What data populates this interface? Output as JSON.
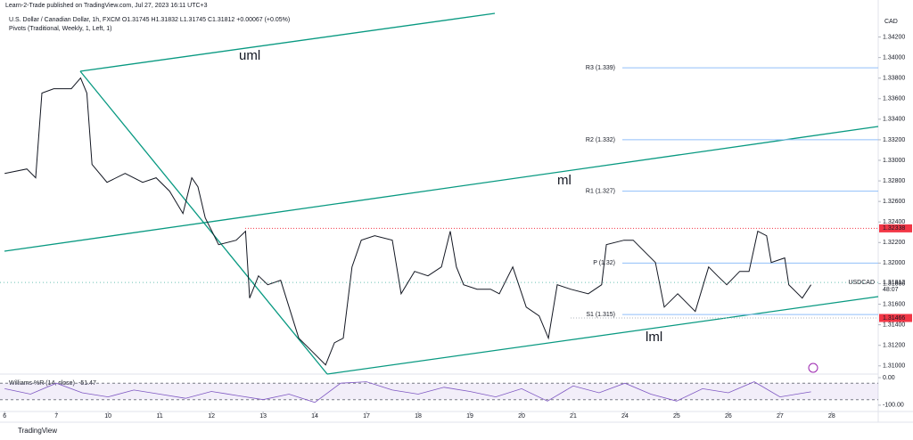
{
  "header": "Learn-2-Trade published on TradingView.com, Jul 27, 2023 16:11 UTC+3",
  "footer": "TradingView",
  "chart_data": [
    {
      "type": "line",
      "title": "U.S. Dollar / Canadian Dollar, 1h, FXCM  O1.31745  H1.31832  L1.31745  C1.31812  +0.00067 (+0.05%)",
      "subtitle": "Pivots (Traditional, Weekly, 1, Left, 1)",
      "currency": "CAD",
      "annotations": [
        "uml",
        "ml",
        "lml"
      ],
      "xlim": [
        -1.09,
        15.9
      ],
      "xticks": [
        {
          "value": -1,
          "label": "6"
        },
        {
          "value": 0,
          "label": "7"
        },
        {
          "value": 1,
          "label": "10"
        },
        {
          "value": 2,
          "label": "11"
        },
        {
          "value": 3,
          "label": "12"
        },
        {
          "value": 4,
          "label": "13"
        },
        {
          "value": 5,
          "label": "14"
        },
        {
          "value": 6,
          "label": "17"
        },
        {
          "value": 7,
          "label": "18"
        },
        {
          "value": 8,
          "label": "19"
        },
        {
          "value": 9,
          "label": "20"
        },
        {
          "value": 10,
          "label": "21"
        },
        {
          "value": 11,
          "label": "24"
        },
        {
          "value": 12,
          "label": "25"
        },
        {
          "value": 13,
          "label": "26"
        },
        {
          "value": 14,
          "label": "27"
        },
        {
          "value": 15,
          "label": "28"
        }
      ],
      "ylim": [
        1.3092,
        1.3456
      ],
      "yticks": [
        {
          "value": 1.31,
          "label": "1.31000"
        },
        {
          "value": 1.312,
          "label": "1.31200"
        },
        {
          "value": 1.314,
          "label": "1.31400"
        },
        {
          "value": 1.316,
          "label": "1.31600"
        },
        {
          "value": 1.318,
          "label": "1.31800"
        },
        {
          "value": 1.32,
          "label": "1.32000"
        },
        {
          "value": 1.322,
          "label": "1.32200"
        },
        {
          "value": 1.324,
          "label": "1.32400"
        },
        {
          "value": 1.326,
          "label": "1.32600"
        },
        {
          "value": 1.328,
          "label": "1.32800"
        },
        {
          "value": 1.33,
          "label": "1.33000"
        },
        {
          "value": 1.332,
          "label": "1.33200"
        },
        {
          "value": 1.334,
          "label": "1.33400"
        },
        {
          "value": 1.336,
          "label": "1.33600"
        },
        {
          "value": 1.338,
          "label": "1.33800"
        },
        {
          "value": 1.34,
          "label": "1.34000"
        },
        {
          "value": 1.342,
          "label": "1.34200"
        }
      ],
      "grid": false,
      "series": [
        {
          "name": "USDCAD",
          "color": "#131722",
          "x": [
            -1.0,
            -0.57,
            -0.4,
            -0.28,
            -0.05,
            0.29,
            0.47,
            0.59,
            0.69,
            0.98,
            1.33,
            1.67,
            1.93,
            2.19,
            2.45,
            2.62,
            2.74,
            2.88,
            3.14,
            3.48,
            3.66,
            3.74,
            3.91,
            4.09,
            4.34,
            4.69,
            4.95,
            5.21,
            5.38,
            5.55,
            5.72,
            5.9,
            6.16,
            6.5,
            6.67,
            6.93,
            7.19,
            7.45,
            7.62,
            7.74,
            7.88,
            8.14,
            8.4,
            8.57,
            8.83,
            9.09,
            9.34,
            9.52,
            9.69,
            9.95,
            10.29,
            10.55,
            10.64,
            10.98,
            11.16,
            11.33,
            11.59,
            11.76,
            12.02,
            12.36,
            12.62,
            12.79,
            12.97,
            13.22,
            13.4,
            13.57,
            13.74,
            13.83,
            14.09,
            14.17,
            14.43,
            14.6
          ],
          "values": [
            1.32873,
            1.32916,
            1.3283,
            1.33654,
            1.33697,
            1.33697,
            1.33801,
            1.33654,
            1.3296,
            1.32786,
            1.32873,
            1.32786,
            1.3283,
            1.327,
            1.32483,
            1.3283,
            1.32743,
            1.3244,
            1.32179,
            1.32223,
            1.3231,
            1.31659,
            1.31876,
            1.31789,
            1.31833,
            1.31269,
            1.31139,
            1.31009,
            1.31225,
            1.31269,
            1.31963,
            1.32223,
            1.32266,
            1.32223,
            1.31702,
            1.31919,
            1.31876,
            1.31963,
            1.3231,
            1.31963,
            1.31789,
            1.31746,
            1.31746,
            1.31702,
            1.31963,
            1.31572,
            1.31486,
            1.31269,
            1.31789,
            1.31746,
            1.31702,
            1.31789,
            1.32179,
            1.32223,
            1.32223,
            1.32136,
            1.32006,
            1.31572,
            1.31702,
            1.31529,
            1.31963,
            1.31876,
            1.31789,
            1.31919,
            1.31919,
            1.3231,
            1.32266,
            1.32006,
            1.3205,
            1.31789,
            1.31659,
            1.31789
          ]
        }
      ],
      "pivots": {
        "color": "#90bff9",
        "levels": [
          {
            "label": "R3 (1.339)",
            "value": 1.339
          },
          {
            "label": "R2 (1.332)",
            "value": 1.332
          },
          {
            "label": "R1 (1.327)",
            "value": 1.327
          },
          {
            "label": "P (1.32)",
            "value": 1.32
          },
          {
            "label": "S1 (1.315)",
            "value": 1.315
          }
        ]
      },
      "price_lines": [
        {
          "value": 1.32338,
          "label": "1.32338",
          "color": "#f23645"
        }
      ],
      "price_tags": [
        {
          "value": 1.31466,
          "label": "1.31466",
          "color": "#f23645"
        }
      ],
      "last": {
        "symbol": "USDCAD",
        "value": 1.31812,
        "label": "1.31812",
        "countdown": "48:07"
      }
    },
    {
      "type": "line",
      "title": "Williams %R (14, close)",
      "last_value": -51.47,
      "xlim": [
        -1.09,
        15.9
      ],
      "ylim": [
        -123,
        13
      ],
      "yticks": [
        {
          "value": 0,
          "label": "0.00"
        },
        {
          "value": -100,
          "label": "-100.00"
        }
      ],
      "bands": [
        -20,
        -80
      ],
      "series": [
        {
          "name": "Williams %R",
          "color": "#7e57c2",
          "x": [
            -1,
            -0.5,
            0,
            0.5,
            1,
            1.5,
            2,
            2.5,
            3,
            3.5,
            4,
            4.5,
            5,
            5.5,
            6,
            6.5,
            7,
            7.5,
            8,
            8.5,
            9,
            9.5,
            10,
            10.5,
            11,
            11.5,
            12,
            12.5,
            13,
            13.5,
            14,
            14.6
          ],
          "values": [
            -40,
            -60,
            -20,
            -55,
            -70,
            -45,
            -60,
            -75,
            -50,
            -65,
            -80,
            -60,
            -90,
            -20,
            -15,
            -45,
            -60,
            -35,
            -50,
            -70,
            -40,
            -85,
            -30,
            -55,
            -20,
            -60,
            -85,
            -40,
            -55,
            -15,
            -70,
            -51.47
          ]
        }
      ]
    }
  ]
}
